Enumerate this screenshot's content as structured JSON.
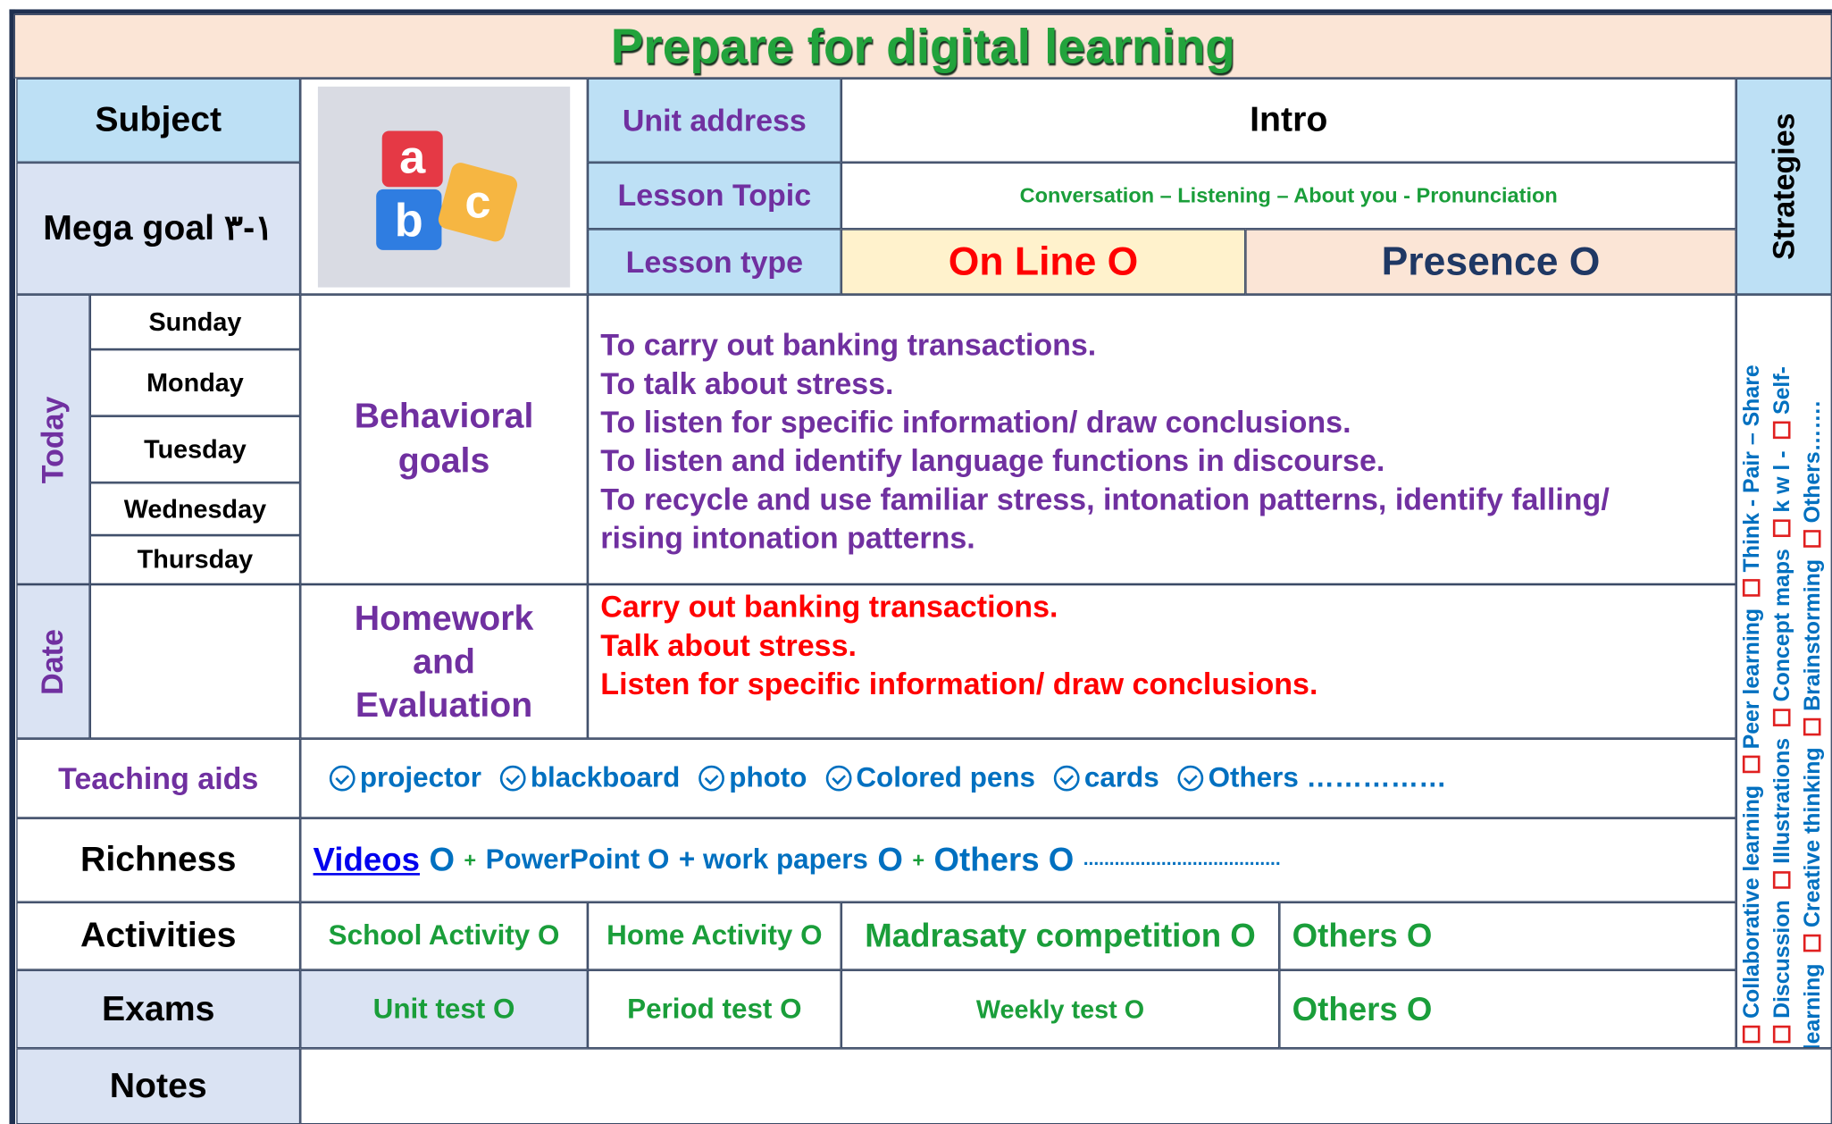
{
  "header": {
    "title": "Prepare for digital learning"
  },
  "labels": {
    "subject": "Subject",
    "mega_goal": "Mega goal ١-٣",
    "unit_address": "Unit address",
    "lesson_topic": "Lesson Topic",
    "lesson_type": "Lesson type",
    "strategies": "Strategies",
    "today": "Today",
    "date": "Date",
    "behavioral_goals": "Behavioral goals",
    "homework": "Homework and Evaluation",
    "teaching_aids": "Teaching aids",
    "richness": "Richness",
    "activities": "Activities",
    "exams": "Exams",
    "notes": "Notes"
  },
  "logo": {
    "letters": [
      "a",
      "b",
      "c"
    ]
  },
  "unit": "Intro",
  "topic": "Conversation – Listening – About you - Pronunciation",
  "lesson_type": {
    "online": "On Line O",
    "presence": "Presence O"
  },
  "days": [
    "Sunday",
    "Monday",
    "Tuesday",
    "Wednesday",
    "Thursday"
  ],
  "behavioral_goals": [
    "To carry out banking transactions.",
    "To talk about stress.",
    "To listen for specific information/ draw conclusions.",
    "To listen and identify language functions in discourse.",
    "To recycle and use familiar stress, intonation patterns, identify falling/",
    "rising intonation patterns."
  ],
  "homework": [
    "Carry out banking transactions.",
    "Talk about stress.",
    "Listen for specific information/ draw conclusions."
  ],
  "teaching_aids": [
    "projector",
    "blackboard",
    "photo",
    "Colored pens",
    "cards",
    "Others ……………"
  ],
  "richness": [
    "Videos",
    "O",
    "+",
    "PowerPoint O",
    "+ work papers",
    "O",
    "+",
    "Others O",
    "......................................"
  ],
  "activities": [
    "School Activity O",
    "Home Activity O",
    "Madrasaty competition O",
    "Others O"
  ],
  "exams": [
    "Unit test O",
    "Period test O",
    "Weekly test O",
    "Others O"
  ],
  "strategy_lines": [
    [
      "Collaborative learning",
      "Peer learning",
      "Think - Pair – Share"
    ],
    [
      "Discussion",
      "Illustrations",
      "Concept maps",
      "k w l -",
      "Self-"
    ],
    [
      "learning",
      "Creative thinking",
      "Brainstorming",
      "Others……."
    ]
  ]
}
